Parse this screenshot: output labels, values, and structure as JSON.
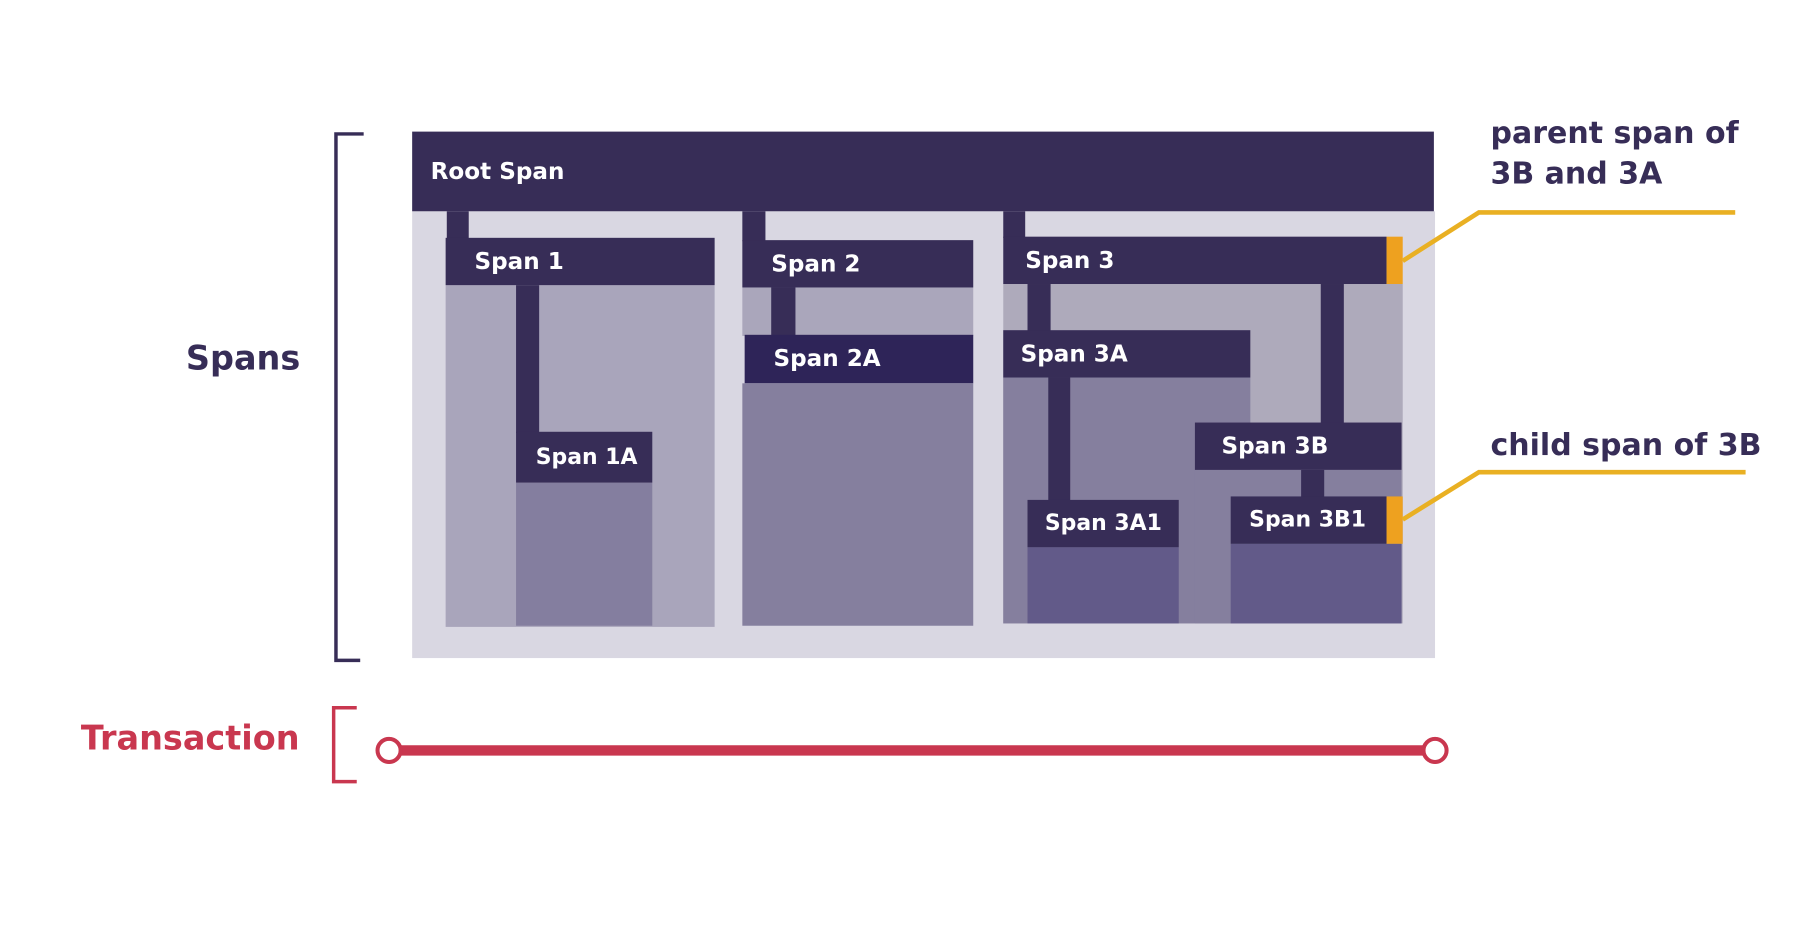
{
  "spans": {
    "root": "Root Span",
    "span1": "Span 1",
    "span1a": "Span 1A",
    "span2": "Span 2",
    "span2a": "Span 2A",
    "span3": "Span 3",
    "span3a": "Span 3A",
    "span3a1": "Span 3A1",
    "span3b": "Span 3B",
    "span3b1": "Span 3B1"
  },
  "labels": {
    "spans": "Spans",
    "transaction": "Transaction",
    "parent_line1": "parent span of",
    "parent_line2": "3B and 3A",
    "child": "child span of 3B"
  },
  "colors": {
    "span_dark": "#372d57",
    "highlight": "#eea11f",
    "callout_line": "#e9b023",
    "transaction": "#c9374f"
  }
}
